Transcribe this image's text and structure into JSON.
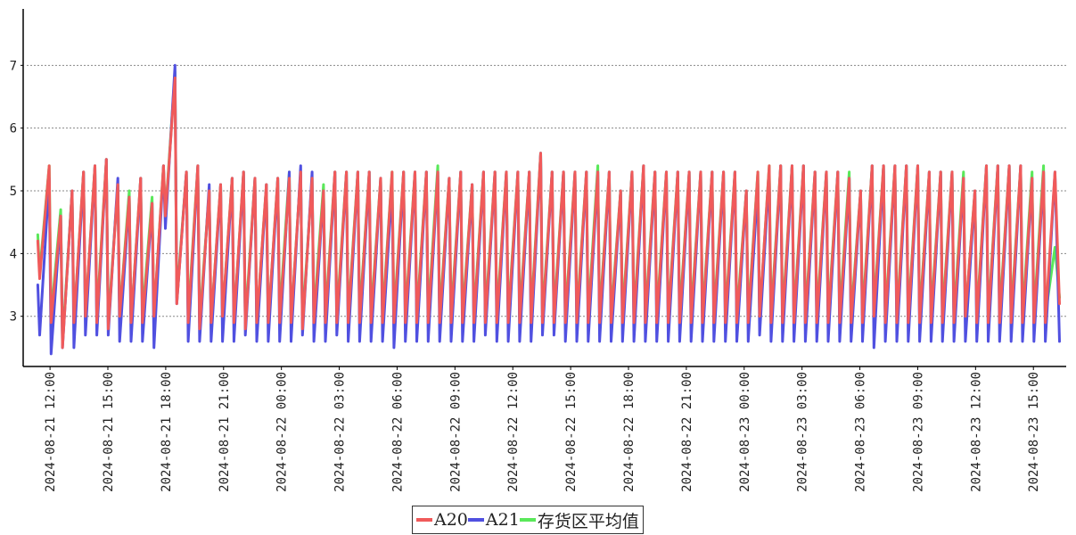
{
  "chart_data": {
    "type": "line",
    "title": "",
    "xlabel": "",
    "ylabel": "",
    "x_range": [
      "2024-08-21 10:42",
      "2024-08-23 16:42"
    ],
    "x_ticks": [
      "2024-08-21 12:00",
      "2024-08-21 15:00",
      "2024-08-21 18:00",
      "2024-08-21 21:00",
      "2024-08-22 00:00",
      "2024-08-22 03:00",
      "2024-08-22 06:00",
      "2024-08-22 09:00",
      "2024-08-22 12:00",
      "2024-08-22 15:00",
      "2024-08-22 18:00",
      "2024-08-22 21:00",
      "2024-08-23 00:00",
      "2024-08-23 03:00",
      "2024-08-23 06:00",
      "2024-08-23 09:00",
      "2024-08-23 12:00",
      "2024-08-23 15:00"
    ],
    "ylim": [
      2.2,
      7.9
    ],
    "y_ticks": [
      3,
      4,
      5,
      6,
      7
    ],
    "grid": "horizontal dotted",
    "legend_position": "bottom-center",
    "series": [
      {
        "name": "A20",
        "color": "#f05a5a",
        "cycles": [
          [
            4.2,
            3.6
          ],
          [
            5.4,
            2.9
          ],
          [
            4.6,
            2.5
          ],
          [
            5.0,
            2.9
          ],
          [
            5.3,
            3.0
          ],
          [
            5.4,
            2.9
          ],
          [
            5.5,
            2.8
          ],
          [
            5.1,
            3.0
          ],
          [
            4.9,
            2.9
          ],
          [
            5.2,
            2.9
          ],
          [
            4.8,
            3.0
          ],
          [
            5.4,
            4.6
          ],
          [
            6.8,
            3.2
          ],
          [
            5.3,
            2.9
          ],
          [
            5.4,
            2.8
          ],
          [
            5.0,
            2.9
          ],
          [
            5.1,
            3.0
          ],
          [
            5.2,
            2.9
          ],
          [
            5.3,
            2.8
          ],
          [
            5.2,
            2.9
          ],
          [
            5.1,
            2.9
          ],
          [
            5.2,
            2.9
          ],
          [
            5.2,
            2.9
          ],
          [
            5.3,
            2.8
          ],
          [
            5.2,
            2.9
          ],
          [
            5.0,
            2.9
          ],
          [
            5.3,
            2.9
          ],
          [
            5.3,
            2.9
          ],
          [
            5.3,
            2.9
          ],
          [
            5.3,
            2.9
          ],
          [
            5.2,
            2.9
          ],
          [
            5.3,
            2.9
          ],
          [
            5.3,
            2.9
          ],
          [
            5.3,
            2.9
          ],
          [
            5.3,
            2.9
          ],
          [
            5.3,
            2.9
          ],
          [
            5.2,
            2.9
          ],
          [
            5.3,
            2.9
          ],
          [
            5.1,
            2.9
          ],
          [
            5.3,
            2.9
          ],
          [
            5.3,
            2.9
          ],
          [
            5.3,
            2.9
          ],
          [
            5.3,
            2.9
          ],
          [
            5.3,
            2.9
          ],
          [
            5.6,
            2.9
          ],
          [
            5.3,
            2.9
          ],
          [
            5.3,
            2.9
          ],
          [
            5.3,
            2.9
          ],
          [
            5.3,
            2.9
          ],
          [
            5.3,
            2.9
          ],
          [
            5.3,
            2.9
          ],
          [
            5.0,
            2.9
          ],
          [
            5.3,
            2.9
          ],
          [
            5.4,
            2.9
          ],
          [
            5.3,
            2.9
          ],
          [
            5.3,
            2.9
          ],
          [
            5.3,
            2.9
          ],
          [
            5.3,
            2.9
          ],
          [
            5.3,
            2.9
          ],
          [
            5.3,
            2.9
          ],
          [
            5.3,
            2.9
          ],
          [
            5.3,
            2.9
          ],
          [
            5.0,
            2.9
          ],
          [
            5.3,
            3.0
          ],
          [
            5.4,
            2.9
          ],
          [
            5.4,
            2.9
          ],
          [
            5.4,
            2.9
          ],
          [
            5.4,
            2.9
          ],
          [
            5.3,
            2.9
          ],
          [
            5.3,
            2.9
          ],
          [
            5.3,
            2.9
          ],
          [
            5.2,
            2.9
          ],
          [
            5.0,
            2.9
          ],
          [
            5.4,
            3.0
          ],
          [
            5.4,
            2.9
          ],
          [
            5.4,
            2.9
          ],
          [
            5.4,
            2.9
          ],
          [
            5.4,
            2.9
          ],
          [
            5.3,
            2.9
          ],
          [
            5.3,
            2.9
          ],
          [
            5.3,
            2.9
          ],
          [
            5.2,
            3.0
          ],
          [
            5.0,
            2.9
          ],
          [
            5.4,
            2.9
          ],
          [
            5.4,
            2.9
          ],
          [
            5.4,
            2.9
          ],
          [
            5.4,
            2.9
          ],
          [
            5.2,
            2.9
          ],
          [
            5.3,
            2.9
          ],
          [
            5.3,
            3.2
          ]
        ]
      },
      {
        "name": "A21",
        "color": "#5050e0",
        "cycles": [
          [
            3.5,
            2.7
          ],
          [
            5.2,
            2.4
          ],
          [
            4.6,
            2.5
          ],
          [
            5.0,
            2.5
          ],
          [
            5.3,
            2.7
          ],
          [
            5.4,
            2.7
          ],
          [
            5.5,
            2.7
          ],
          [
            5.2,
            2.6
          ],
          [
            4.9,
            2.6
          ],
          [
            5.2,
            2.6
          ],
          [
            4.8,
            2.5
          ],
          [
            5.4,
            4.4
          ],
          [
            7.0,
            3.2
          ],
          [
            5.3,
            2.6
          ],
          [
            5.4,
            2.6
          ],
          [
            5.1,
            2.6
          ],
          [
            5.1,
            2.6
          ],
          [
            5.2,
            2.6
          ],
          [
            5.3,
            2.7
          ],
          [
            5.2,
            2.6
          ],
          [
            5.1,
            2.6
          ],
          [
            5.2,
            2.6
          ],
          [
            5.3,
            2.6
          ],
          [
            5.4,
            2.7
          ],
          [
            5.3,
            2.6
          ],
          [
            5.0,
            2.6
          ],
          [
            5.3,
            2.7
          ],
          [
            5.3,
            2.6
          ],
          [
            5.3,
            2.6
          ],
          [
            5.3,
            2.6
          ],
          [
            5.2,
            2.6
          ],
          [
            5.1,
            2.5
          ],
          [
            5.3,
            2.6
          ],
          [
            5.3,
            2.6
          ],
          [
            5.3,
            2.6
          ],
          [
            5.3,
            2.6
          ],
          [
            5.2,
            2.6
          ],
          [
            5.3,
            2.6
          ],
          [
            5.1,
            2.6
          ],
          [
            5.3,
            2.7
          ],
          [
            5.3,
            2.6
          ],
          [
            5.3,
            2.6
          ],
          [
            5.3,
            2.6
          ],
          [
            5.3,
            2.6
          ],
          [
            5.6,
            2.7
          ],
          [
            5.3,
            2.7
          ],
          [
            5.3,
            2.6
          ],
          [
            5.3,
            2.6
          ],
          [
            5.3,
            2.6
          ],
          [
            5.3,
            2.6
          ],
          [
            5.3,
            2.6
          ],
          [
            5.0,
            2.6
          ],
          [
            5.3,
            2.6
          ],
          [
            5.4,
            2.6
          ],
          [
            5.3,
            2.6
          ],
          [
            5.3,
            2.6
          ],
          [
            5.3,
            2.6
          ],
          [
            5.3,
            2.6
          ],
          [
            5.3,
            2.6
          ],
          [
            5.3,
            2.6
          ],
          [
            5.3,
            2.6
          ],
          [
            5.3,
            2.6
          ],
          [
            5.0,
            2.6
          ],
          [
            5.1,
            2.7
          ],
          [
            5.3,
            2.6
          ],
          [
            5.4,
            2.6
          ],
          [
            5.4,
            2.6
          ],
          [
            5.4,
            2.6
          ],
          [
            5.3,
            2.6
          ],
          [
            5.3,
            2.6
          ],
          [
            5.3,
            2.6
          ],
          [
            5.2,
            2.6
          ],
          [
            5.0,
            2.6
          ],
          [
            5.4,
            2.5
          ],
          [
            5.4,
            2.6
          ],
          [
            5.4,
            2.6
          ],
          [
            5.4,
            2.6
          ],
          [
            5.4,
            2.6
          ],
          [
            5.3,
            2.6
          ],
          [
            5.3,
            2.6
          ],
          [
            5.3,
            2.6
          ],
          [
            5.2,
            2.6
          ],
          [
            5.0,
            2.6
          ],
          [
            5.4,
            2.6
          ],
          [
            5.4,
            2.6
          ],
          [
            5.4,
            2.6
          ],
          [
            5.4,
            2.6
          ],
          [
            5.2,
            2.6
          ],
          [
            5.3,
            2.6
          ],
          [
            5.3,
            2.6
          ]
        ]
      },
      {
        "name": "存货区平均值",
        "color": "#5ae85a",
        "cycles": [
          [
            4.3,
            3.7
          ],
          [
            5.4,
            3.0
          ],
          [
            4.7,
            2.6
          ],
          [
            5.0,
            2.9
          ],
          [
            5.3,
            3.0
          ],
          [
            5.4,
            3.0
          ],
          [
            5.5,
            2.9
          ],
          [
            5.1,
            3.0
          ],
          [
            5.0,
            2.9
          ],
          [
            5.2,
            3.0
          ],
          [
            4.9,
            3.0
          ],
          [
            5.4,
            4.6
          ],
          [
            6.9,
            3.3
          ],
          [
            5.3,
            3.0
          ],
          [
            5.4,
            2.9
          ],
          [
            5.0,
            2.9
          ],
          [
            5.1,
            3.0
          ],
          [
            5.2,
            2.9
          ],
          [
            5.3,
            2.9
          ],
          [
            5.2,
            2.9
          ],
          [
            5.1,
            2.9
          ],
          [
            5.2,
            3.0
          ],
          [
            5.3,
            2.9
          ],
          [
            5.3,
            2.9
          ],
          [
            5.2,
            3.0
          ],
          [
            5.1,
            3.0
          ],
          [
            5.3,
            3.0
          ],
          [
            5.3,
            3.0
          ],
          [
            5.3,
            3.0
          ],
          [
            5.3,
            3.0
          ],
          [
            5.2,
            3.0
          ],
          [
            5.3,
            3.0
          ],
          [
            5.3,
            3.0
          ],
          [
            5.3,
            3.0
          ],
          [
            5.3,
            3.0
          ],
          [
            5.4,
            3.0
          ],
          [
            5.2,
            3.0
          ],
          [
            5.3,
            3.0
          ],
          [
            5.1,
            3.0
          ],
          [
            5.3,
            3.0
          ],
          [
            5.3,
            3.0
          ],
          [
            5.3,
            3.0
          ],
          [
            5.3,
            3.0
          ],
          [
            5.3,
            3.0
          ],
          [
            5.6,
            3.0
          ],
          [
            5.3,
            3.0
          ],
          [
            5.3,
            3.0
          ],
          [
            5.3,
            3.0
          ],
          [
            5.3,
            3.0
          ],
          [
            5.4,
            3.0
          ],
          [
            5.3,
            3.0
          ],
          [
            5.0,
            3.0
          ],
          [
            5.3,
            3.0
          ],
          [
            5.4,
            3.0
          ],
          [
            5.3,
            3.0
          ],
          [
            5.3,
            3.0
          ],
          [
            5.3,
            3.0
          ],
          [
            5.3,
            3.0
          ],
          [
            5.3,
            3.0
          ],
          [
            5.3,
            3.0
          ],
          [
            5.3,
            3.0
          ],
          [
            5.3,
            3.0
          ],
          [
            5.0,
            3.0
          ],
          [
            5.3,
            3.0
          ],
          [
            5.4,
            3.0
          ],
          [
            5.4,
            3.0
          ],
          [
            5.4,
            3.0
          ],
          [
            5.4,
            3.0
          ],
          [
            5.3,
            3.0
          ],
          [
            5.3,
            3.0
          ],
          [
            5.3,
            3.0
          ],
          [
            5.3,
            3.0
          ],
          [
            5.0,
            3.0
          ],
          [
            5.4,
            3.1
          ],
          [
            5.4,
            3.0
          ],
          [
            5.4,
            3.0
          ],
          [
            5.4,
            3.0
          ],
          [
            5.4,
            3.0
          ],
          [
            5.3,
            3.0
          ],
          [
            5.3,
            3.0
          ],
          [
            5.3,
            3.0
          ],
          [
            5.3,
            3.0
          ],
          [
            5.0,
            3.0
          ],
          [
            5.4,
            3.0
          ],
          [
            5.4,
            3.0
          ],
          [
            5.4,
            3.0
          ],
          [
            5.4,
            3.0
          ],
          [
            5.3,
            3.0
          ],
          [
            5.4,
            3.0
          ],
          [
            4.1,
            3.3
          ]
        ]
      }
    ]
  }
}
